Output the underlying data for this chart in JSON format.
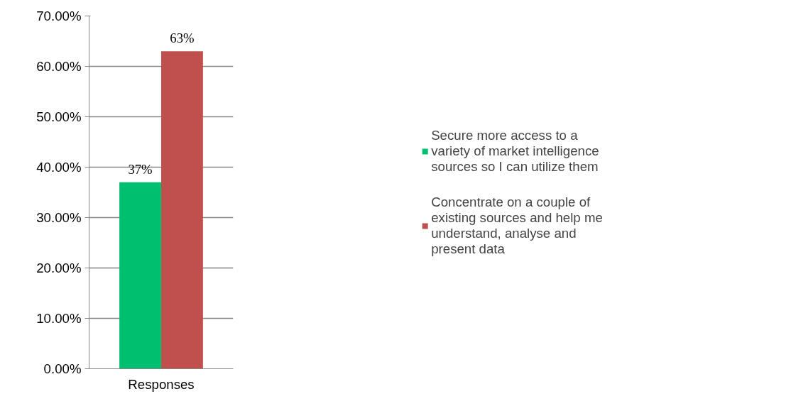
{
  "chart_data": {
    "type": "bar",
    "categories": [
      "Responses"
    ],
    "series": [
      {
        "name": "Secure more access to a variety of market intelligence sources so I can utilize them",
        "color": "#00bf6f",
        "values": [
          37
        ],
        "value_labels": [
          "37%"
        ]
      },
      {
        "name": "Concentrate on a couple of existing sources and help me understand, analyse and present data",
        "color": "#c0504d",
        "values": [
          63
        ],
        "value_labels": [
          "63%"
        ]
      }
    ],
    "ylim": [
      0,
      70
    ],
    "yticks": [
      {
        "value": 0,
        "label": "0.00%"
      },
      {
        "value": 10,
        "label": "10.00%"
      },
      {
        "value": 20,
        "label": "20.00%"
      },
      {
        "value": 30,
        "label": "30.00%"
      },
      {
        "value": 40,
        "label": "40.00%"
      },
      {
        "value": 50,
        "label": "50.00%"
      },
      {
        "value": 60,
        "label": "60.00%"
      },
      {
        "value": 70,
        "label": "70.00%"
      }
    ],
    "grid": "y",
    "legend": "right"
  }
}
